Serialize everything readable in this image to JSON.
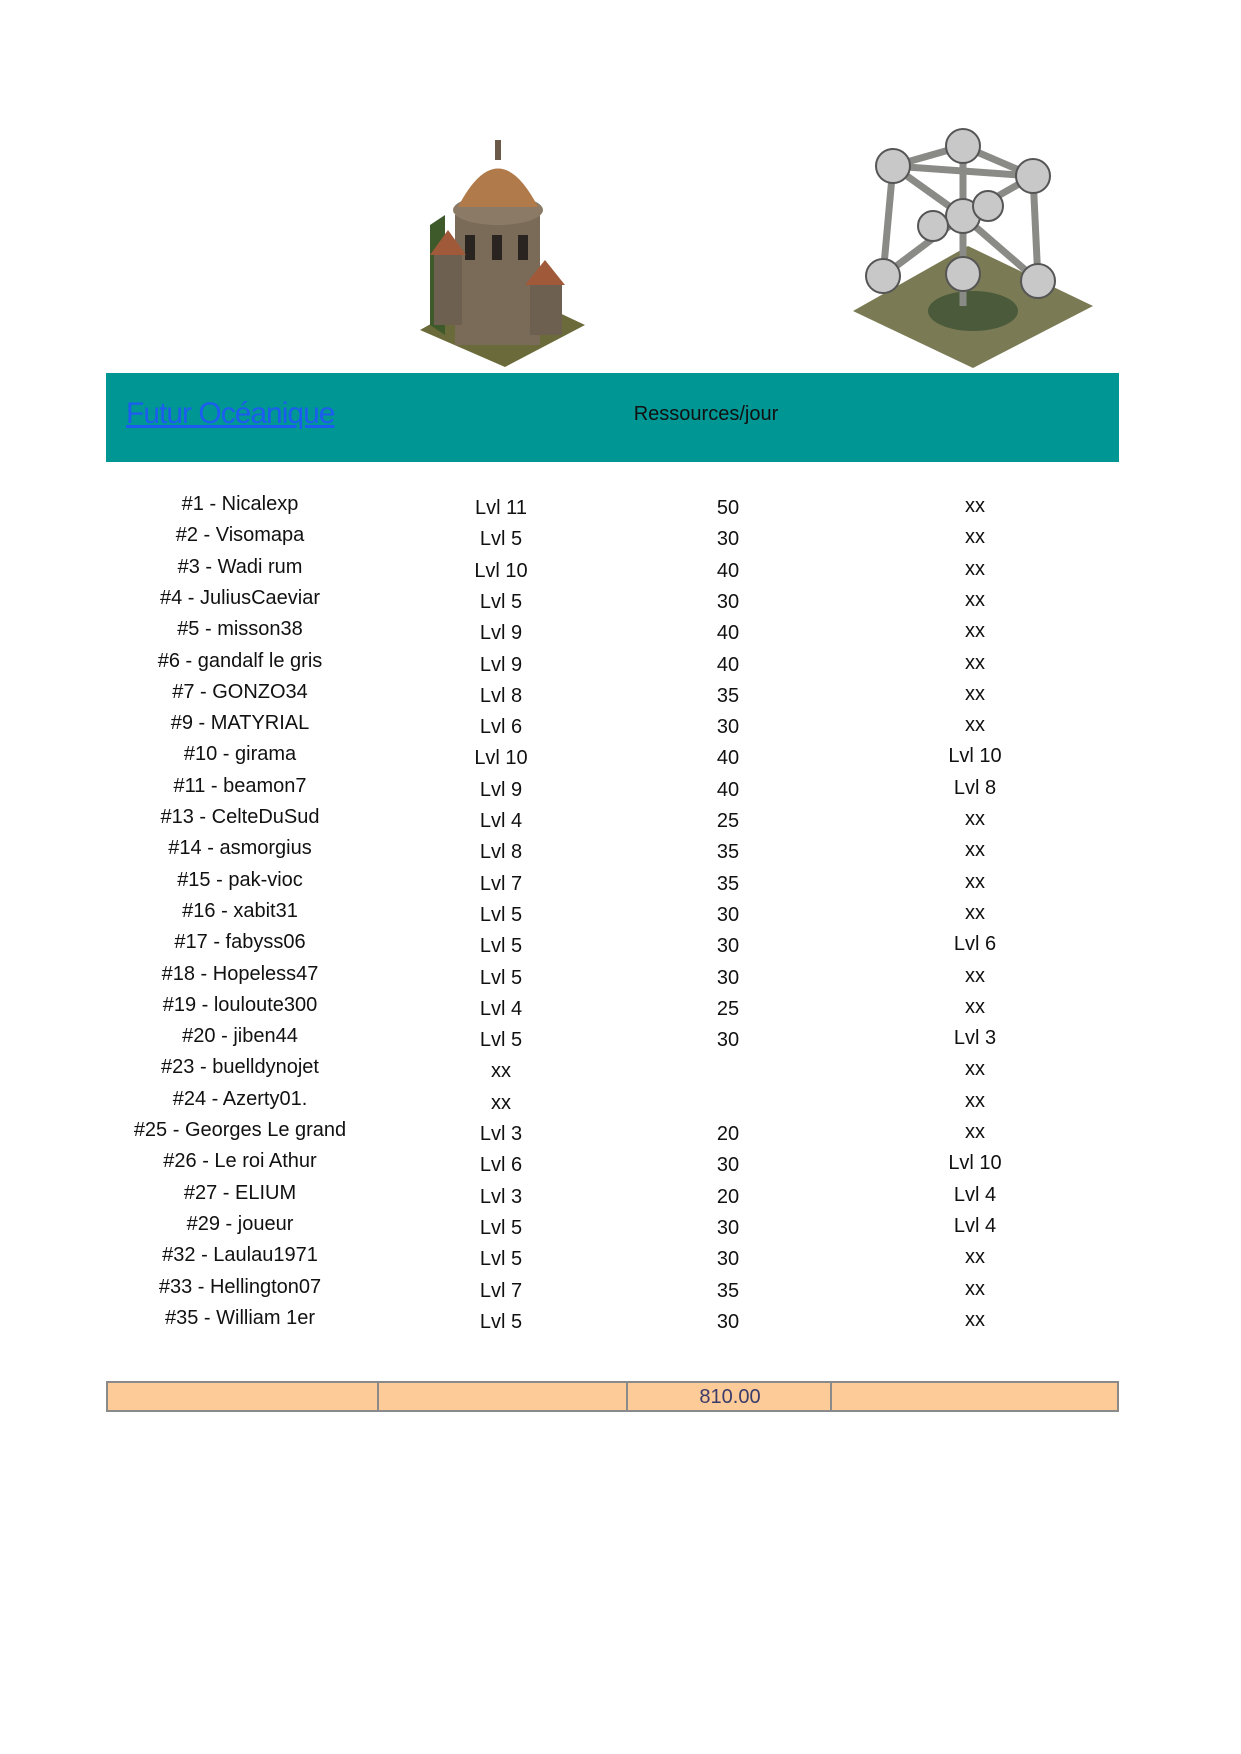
{
  "header": {
    "title": "Futur Océanique",
    "column_label": "Ressources/jour"
  },
  "images": [
    {
      "name": "observatory-building"
    },
    {
      "name": "atomium-building"
    }
  ],
  "rows": [
    [
      "#1 - Nicalexp",
      "Lvl 11",
      "50",
      "xx"
    ],
    [
      "#2 - Visomapa",
      "Lvl 5",
      "30",
      "xx"
    ],
    [
      "#3 - Wadi rum",
      "Lvl 10",
      "40",
      "xx"
    ],
    [
      "#4 - JuliusCaeviar",
      "Lvl 5",
      "30",
      "xx"
    ],
    [
      "#5 - misson38",
      "Lvl 9",
      "40",
      "xx"
    ],
    [
      "#6 - gandalf le gris",
      "Lvl 9",
      "40",
      "xx"
    ],
    [
      "#7 - GONZO34",
      "Lvl 8",
      "35",
      "xx"
    ],
    [
      "#9 - MATYRIAL",
      "Lvl 6",
      "30",
      "xx"
    ],
    [
      "#10 - girama",
      "Lvl 10",
      "40",
      "Lvl 10"
    ],
    [
      "#11 - beamon7",
      "Lvl 9",
      "40",
      "Lvl 8"
    ],
    [
      "#13 - CelteDuSud",
      "Lvl 4",
      "25",
      "xx"
    ],
    [
      "#14 - asmorgius",
      "Lvl 8",
      "35",
      "xx"
    ],
    [
      "#15 - pak-vioc",
      "Lvl 7",
      "35",
      "xx"
    ],
    [
      "#16 - xabit31",
      "Lvl 5",
      "30",
      "xx"
    ],
    [
      "#17 - fabyss06",
      "Lvl 5",
      "30",
      "Lvl 6"
    ],
    [
      "#18 - Hopeless47",
      "Lvl 5",
      "30",
      "xx"
    ],
    [
      "#19 - louloute300",
      "Lvl 4",
      "25",
      "xx"
    ],
    [
      "#20 - jiben44",
      "Lvl 5",
      "30",
      "Lvl 3"
    ],
    [
      "#23 - buelldynojet",
      "xx",
      "",
      "xx"
    ],
    [
      "#24 - Azerty01.",
      "xx",
      "",
      "xx"
    ],
    [
      "#25 - Georges Le grand",
      "Lvl 3",
      "20",
      "xx"
    ],
    [
      "#26 - Le roi Athur",
      "Lvl 6",
      "30",
      "Lvl 10"
    ],
    [
      "#27 - ELIUM",
      "Lvl 3",
      "20",
      "Lvl 4"
    ],
    [
      "#29 - joueur",
      "Lvl 5",
      "30",
      "Lvl 4"
    ],
    [
      "#32 - Laulau1971",
      "Lvl 5",
      "30",
      "xx"
    ],
    [
      "#33 - Hellington07",
      "Lvl 7",
      "35",
      "xx"
    ],
    [
      "#35 - William 1er",
      "Lvl 5",
      "30",
      "xx"
    ]
  ],
  "total": {
    "value": "810.00"
  },
  "colors": {
    "band": "#009694",
    "title_link": "#1d5cf0",
    "total_fill": "#fccb97"
  }
}
